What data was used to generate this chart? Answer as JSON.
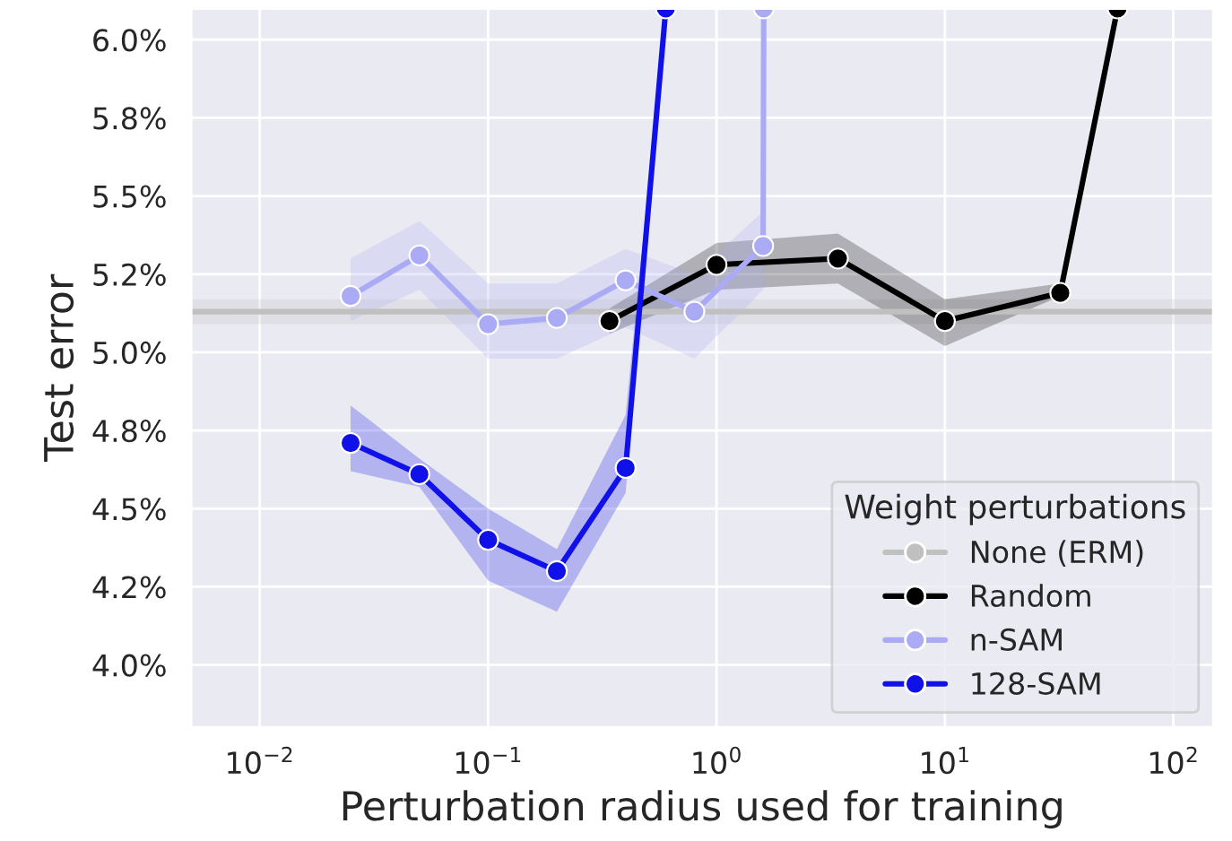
{
  "chart_data": {
    "type": "line",
    "xlabel": "Perturbation radius used for training",
    "ylabel": "Test error",
    "legend_title": "Weight perturbations",
    "legend": "bottom right",
    "grid": true,
    "marker": "circle",
    "line_style": "solid",
    "log": "x",
    "xlim": [
      0.005,
      150
    ],
    "ylim": [
      3.8,
      6.1
    ],
    "xticks": [
      {
        "value": 0.01,
        "label": "10$^{−2}$"
      },
      {
        "value": 0.1,
        "label": "10$^{−1}$"
      },
      {
        "value": 1,
        "label": "10$^{0}$"
      },
      {
        "value": 10,
        "label": "10$^{1}$"
      },
      {
        "value": 100,
        "label": "10$^{2}$"
      }
    ],
    "yticks": [
      {
        "value": 4.0,
        "label": "4.0%"
      },
      {
        "value": 4.25,
        "label": "4.2%"
      },
      {
        "value": 4.5,
        "label": "4.5%"
      },
      {
        "value": 4.75,
        "label": "4.8%"
      },
      {
        "value": 5.0,
        "label": "5.0%"
      },
      {
        "value": 5.25,
        "label": "5.2%"
      },
      {
        "value": 5.5,
        "label": "5.5%"
      },
      {
        "value": 5.75,
        "label": "5.8%"
      },
      {
        "value": 6.0,
        "label": "6.0%"
      }
    ],
    "series": [
      {
        "name": "None (ERM)",
        "color": "#c0c0c0",
        "marker": "none",
        "x": [
          0.005,
          150
        ],
        "values": [
          5.13,
          5.13
        ],
        "lower": [
          5.09,
          5.09
        ],
        "upper": [
          5.17,
          5.17
        ]
      },
      {
        "name": "Random",
        "color": "#000000",
        "x": [
          0.34,
          1,
          3.4,
          10,
          32,
          57
        ],
        "values": [
          5.1,
          5.28,
          5.3,
          5.1,
          5.19,
          6.1
        ],
        "lower": [
          5.06,
          5.2,
          5.22,
          5.02,
          5.18,
          6.1
        ],
        "upper": [
          5.14,
          5.35,
          5.38,
          5.17,
          5.22,
          6.1
        ]
      },
      {
        "name": "n-SAM",
        "color": "#aaaaf5",
        "x": [
          0.025,
          0.05,
          0.1,
          0.2,
          0.4,
          0.8,
          1.6,
          1.61
        ],
        "values": [
          5.18,
          5.31,
          5.09,
          5.11,
          5.23,
          5.13,
          5.34,
          6.1
        ],
        "lower": [
          5.1,
          5.2,
          4.98,
          4.98,
          5.08,
          4.98,
          5.2,
          6.1
        ],
        "upper": [
          5.3,
          5.42,
          5.22,
          5.22,
          5.33,
          5.25,
          5.45,
          6.1
        ]
      },
      {
        "name": "128-SAM",
        "color": "#1010e8",
        "x": [
          0.025,
          0.05,
          0.1,
          0.2,
          0.4,
          0.6
        ],
        "values": [
          4.71,
          4.61,
          4.4,
          4.3,
          4.63,
          6.1
        ],
        "lower": [
          4.62,
          4.57,
          4.27,
          4.17,
          4.55,
          6.1
        ],
        "upper": [
          4.83,
          4.66,
          4.5,
          4.37,
          4.8,
          6.1
        ]
      }
    ]
  }
}
